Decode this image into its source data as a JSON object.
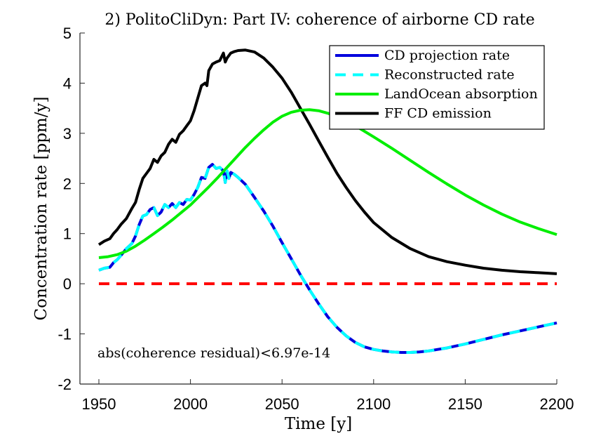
{
  "chart_data": {
    "type": "line",
    "title": "2) PolitoCliDyn: Part IV: coherence of airborne CD rate",
    "xlabel": "Time [y]",
    "ylabel": "Concentration rate [ppm/y]",
    "xlim": [
      1950,
      2200
    ],
    "ylim": [
      -2,
      5
    ],
    "xticks": [
      1950,
      2000,
      2050,
      2100,
      2150,
      2200
    ],
    "yticks": [
      -2,
      -1,
      0,
      1,
      2,
      3,
      4,
      5
    ],
    "grid": false,
    "legend_position": "top-right",
    "annotation": "abs(coherence residual)<6.97e-14",
    "series": [
      {
        "name": "FF CD emission",
        "color": "#000000",
        "style": "solid",
        "x": [
          1950,
          1953,
          1956,
          1958,
          1960,
          1962,
          1965,
          1968,
          1970,
          1972,
          1974,
          1976,
          1978,
          1980,
          1982,
          1984,
          1986,
          1988,
          1990,
          1992,
          1994,
          1996,
          1998,
          2000,
          2002,
          2004,
          2006,
          2008,
          2009,
          2010,
          2012,
          2014,
          2016,
          2018,
          2019,
          2020,
          2021,
          2022,
          2024,
          2026,
          2030,
          2035,
          2040,
          2045,
          2050,
          2055,
          2060,
          2065,
          2070,
          2075,
          2080,
          2085,
          2090,
          2095,
          2100,
          2110,
          2120,
          2130,
          2140,
          2150,
          2160,
          2170,
          2180,
          2190,
          2200
        ],
        "y": [
          0.78,
          0.85,
          0.9,
          1.0,
          1.08,
          1.18,
          1.3,
          1.5,
          1.62,
          1.88,
          2.1,
          2.2,
          2.3,
          2.48,
          2.42,
          2.55,
          2.62,
          2.78,
          2.88,
          2.82,
          2.98,
          3.05,
          3.15,
          3.25,
          3.45,
          3.7,
          3.95,
          4.0,
          3.95,
          4.25,
          4.38,
          4.42,
          4.45,
          4.6,
          4.42,
          4.5,
          4.55,
          4.6,
          4.63,
          4.65,
          4.66,
          4.62,
          4.5,
          4.32,
          4.1,
          3.82,
          3.5,
          3.18,
          2.85,
          2.52,
          2.2,
          1.92,
          1.66,
          1.43,
          1.22,
          0.92,
          0.7,
          0.54,
          0.44,
          0.37,
          0.31,
          0.27,
          0.24,
          0.22,
          0.2
        ]
      },
      {
        "name": "LandOcean absorption",
        "color": "#00ee00",
        "style": "solid",
        "x": [
          1950,
          1955,
          1960,
          1965,
          1970,
          1975,
          1980,
          1985,
          1990,
          1995,
          2000,
          2005,
          2010,
          2015,
          2020,
          2025,
          2030,
          2035,
          2040,
          2045,
          2050,
          2055,
          2060,
          2065,
          2070,
          2075,
          2080,
          2090,
          2100,
          2110,
          2120,
          2130,
          2140,
          2150,
          2160,
          2170,
          2180,
          2190,
          2200
        ],
        "y": [
          0.52,
          0.54,
          0.58,
          0.65,
          0.75,
          0.87,
          1.0,
          1.13,
          1.27,
          1.42,
          1.57,
          1.75,
          1.93,
          2.12,
          2.32,
          2.52,
          2.72,
          2.9,
          3.07,
          3.22,
          3.34,
          3.42,
          3.46,
          3.47,
          3.45,
          3.4,
          3.33,
          3.15,
          2.93,
          2.7,
          2.46,
          2.22,
          1.99,
          1.77,
          1.57,
          1.39,
          1.23,
          1.1,
          0.98
        ]
      },
      {
        "name": "CD projection rate",
        "color": "#0000dd",
        "style": "solid",
        "x": [
          1950,
          1953,
          1956,
          1958,
          1960,
          1962,
          1965,
          1968,
          1970,
          1972,
          1974,
          1976,
          1978,
          1980,
          1982,
          1984,
          1986,
          1988,
          1990,
          1992,
          1994,
          1996,
          1998,
          2000,
          2002,
          2004,
          2006,
          2008,
          2010,
          2012,
          2014,
          2016,
          2018,
          2019,
          2020,
          2021,
          2022,
          2024,
          2026,
          2030,
          2035,
          2040,
          2045,
          2050,
          2055,
          2060,
          2065,
          2070,
          2075,
          2080,
          2085,
          2090,
          2095,
          2100,
          2105,
          2110,
          2115,
          2120,
          2125,
          2130,
          2135,
          2140,
          2150,
          2160,
          2170,
          2180,
          2190,
          2200
        ],
        "y": [
          0.27,
          0.31,
          0.33,
          0.42,
          0.48,
          0.56,
          0.7,
          0.8,
          0.95,
          1.18,
          1.35,
          1.38,
          1.48,
          1.52,
          1.36,
          1.43,
          1.58,
          1.52,
          1.6,
          1.52,
          1.62,
          1.58,
          1.68,
          1.67,
          1.78,
          1.92,
          2.12,
          2.1,
          2.32,
          2.38,
          2.3,
          2.32,
          2.25,
          2.02,
          2.25,
          2.1,
          2.22,
          2.18,
          2.12,
          1.98,
          1.72,
          1.45,
          1.15,
          0.82,
          0.5,
          0.18,
          -0.12,
          -0.4,
          -0.66,
          -0.87,
          -1.04,
          -1.17,
          -1.26,
          -1.31,
          -1.34,
          -1.36,
          -1.37,
          -1.37,
          -1.36,
          -1.34,
          -1.31,
          -1.28,
          -1.2,
          -1.11,
          -1.02,
          -0.94,
          -0.86,
          -0.78
        ]
      },
      {
        "name": "Reconstructed rate",
        "color": "#00ffff",
        "style": "dashed",
        "x": [
          1950,
          1953,
          1956,
          1958,
          1960,
          1962,
          1965,
          1968,
          1970,
          1972,
          1974,
          1976,
          1978,
          1980,
          1982,
          1984,
          1986,
          1988,
          1990,
          1992,
          1994,
          1996,
          1998,
          2000,
          2002,
          2004,
          2006,
          2008,
          2010,
          2012,
          2014,
          2016,
          2018,
          2019,
          2020,
          2021,
          2022,
          2024,
          2026,
          2030,
          2035,
          2040,
          2045,
          2050,
          2055,
          2060,
          2065,
          2070,
          2075,
          2080,
          2085,
          2090,
          2095,
          2100,
          2105,
          2110,
          2115,
          2120,
          2125,
          2130,
          2135,
          2140,
          2150,
          2160,
          2170,
          2180,
          2190,
          2200
        ],
        "y": [
          0.27,
          0.31,
          0.33,
          0.42,
          0.48,
          0.56,
          0.7,
          0.8,
          0.95,
          1.18,
          1.35,
          1.38,
          1.48,
          1.52,
          1.36,
          1.43,
          1.58,
          1.52,
          1.6,
          1.52,
          1.62,
          1.58,
          1.68,
          1.67,
          1.78,
          1.92,
          2.12,
          2.1,
          2.32,
          2.38,
          2.3,
          2.32,
          2.25,
          2.02,
          2.25,
          2.1,
          2.22,
          2.18,
          2.12,
          1.98,
          1.72,
          1.45,
          1.15,
          0.82,
          0.5,
          0.18,
          -0.12,
          -0.4,
          -0.66,
          -0.87,
          -1.04,
          -1.17,
          -1.26,
          -1.31,
          -1.34,
          -1.36,
          -1.37,
          -1.37,
          -1.36,
          -1.34,
          -1.31,
          -1.28,
          -1.2,
          -1.11,
          -1.02,
          -0.94,
          -0.86,
          -0.78
        ]
      },
      {
        "name": "",
        "color": "#ff0000",
        "style": "dashed",
        "x": [
          1950,
          2200
        ],
        "y": [
          0,
          0
        ]
      }
    ],
    "legend": [
      "CD projection rate",
      "Reconstructed rate",
      "LandOcean absorption",
      "FF CD emission"
    ]
  }
}
